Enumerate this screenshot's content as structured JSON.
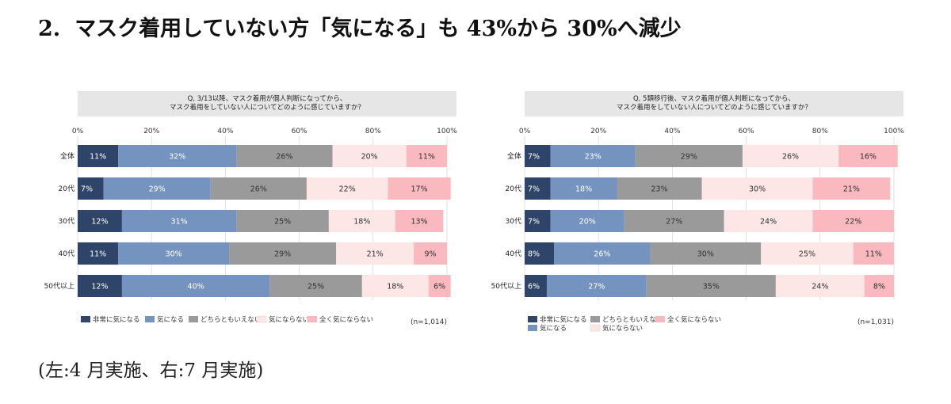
{
  "header": {
    "number": "2.",
    "title": "マスク着用していない方「気になる」も 43%から 30%へ減少"
  },
  "footnote": "(左:4 月実施、右:7 月実施)",
  "legend_categories": [
    "非常に気になる",
    "気になる",
    "どちらともいえない",
    "気にならない",
    "全く気にならない"
  ],
  "colors": [
    "#2e4468",
    "#7593bf",
    "#9a9a9a",
    "#fde6e6",
    "#f9b9bf"
  ],
  "chart_data": [
    {
      "type": "bar",
      "orientation": "horizontal-stacked-100",
      "question_line1": "Q, 3/13以降、マスク着用が個人判断になってから、",
      "question_line2": "マスク着用をしていない人についてどのように感じていますか？",
      "categories": [
        "全体",
        "20代",
        "30代",
        "40代",
        "50代以上"
      ],
      "series": [
        {
          "name": "非常に気になる",
          "values": [
            11,
            7,
            12,
            11,
            12
          ]
        },
        {
          "name": "気になる",
          "values": [
            32,
            29,
            31,
            30,
            40
          ]
        },
        {
          "name": "どちらともいえない",
          "values": [
            26,
            26,
            25,
            29,
            25
          ]
        },
        {
          "name": "気にならない",
          "values": [
            20,
            22,
            18,
            21,
            18
          ]
        },
        {
          "name": "全く気にならない",
          "values": [
            11,
            17,
            13,
            9,
            6
          ]
        }
      ],
      "xticks": [
        "0%",
        "20%",
        "40%",
        "60%",
        "80%",
        "100%"
      ],
      "xlim": [
        0,
        100
      ],
      "n_label": "(n=1,014)",
      "legend": "bottom"
    },
    {
      "type": "bar",
      "orientation": "horizontal-stacked-100",
      "question_line1": "Q, 5類移行後、マスク着用が個人判断になってから、",
      "question_line2": "マスク着用をしていない人についてどのように感じていますか？",
      "categories": [
        "全体",
        "20代",
        "30代",
        "40代",
        "50代以上"
      ],
      "series": [
        {
          "name": "非常に気になる",
          "values": [
            7,
            7,
            7,
            8,
            6
          ]
        },
        {
          "name": "気になる",
          "values": [
            23,
            18,
            20,
            26,
            27
          ]
        },
        {
          "name": "どちらともいえない",
          "values": [
            29,
            23,
            27,
            30,
            35
          ]
        },
        {
          "name": "気にならない",
          "values": [
            26,
            30,
            24,
            25,
            24
          ]
        },
        {
          "name": "全く気にならない",
          "values": [
            16,
            21,
            22,
            11,
            8
          ]
        }
      ],
      "xticks": [
        "0%",
        "20%",
        "40%",
        "60%",
        "80%",
        "100%"
      ],
      "xlim": [
        0,
        100
      ],
      "n_label": "(n=1,031)",
      "legend": "bottom"
    }
  ]
}
